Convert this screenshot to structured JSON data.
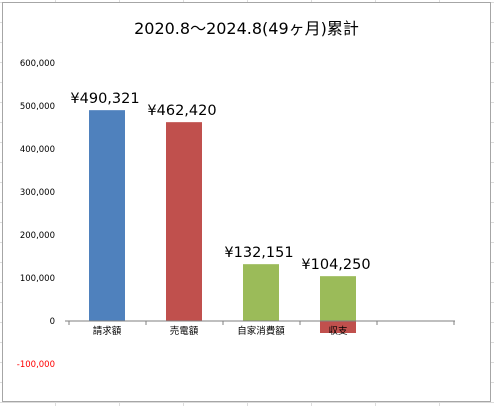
{
  "chart_data": {
    "type": "bar",
    "title": "2020.8～2024.8(49ヶ月)累計",
    "categories": [
      "請求額",
      "売電額",
      "自家消費額",
      "収支"
    ],
    "values": [
      490321,
      462420,
      132151,
      104250
    ],
    "negative_overlay": [
      null,
      null,
      null,
      -27901
    ],
    "data_labels": [
      "¥490,321",
      "¥462,420",
      "¥132,151",
      "¥104,250"
    ],
    "colors": [
      "#4f81bd",
      "#c0504d",
      "#9bbb59",
      "#9bbb59"
    ],
    "negative_color": "#c0504d",
    "y_ticks": [
      "600,000",
      "500,000",
      "400,000",
      "300,000",
      "200,000",
      "100,000",
      "0",
      "-100,000"
    ],
    "y_tick_values": [
      600000,
      500000,
      400000,
      300000,
      200000,
      100000,
      0,
      -100000
    ],
    "negative_tick_color": "#ff0000",
    "ylim": [
      -100000,
      600000
    ],
    "xlabel": "",
    "ylabel": "",
    "grid": false,
    "legend": "none"
  }
}
